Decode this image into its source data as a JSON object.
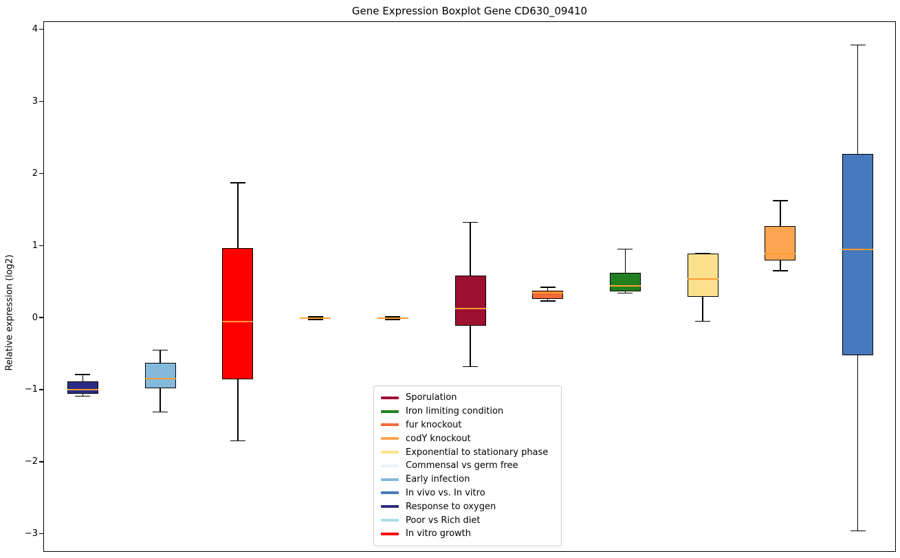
{
  "chart_data": {
    "type": "boxplot",
    "title": "Gene Expression Boxplot Gene CD630_09410",
    "ylabel": "Relative expression (log2)",
    "xlabel": "",
    "ylim": [
      -3.25,
      4.11
    ],
    "xlim": [
      0.5,
      11.5
    ],
    "yticks": [
      4,
      3,
      2,
      1,
      0,
      -1,
      -2,
      -3
    ],
    "xtick_labels": [],
    "grid": false,
    "median_color": "#FF9D2E",
    "legend_position": "lower center inside plot",
    "boxes": [
      {
        "position": 1,
        "condition": "Response to oxygen",
        "color": "#2A2C85",
        "whisker_low": -1.08,
        "q1": -1.05,
        "median": -0.99,
        "q3": -0.88,
        "whisker_high": -0.78
      },
      {
        "position": 2,
        "condition": "Early infection",
        "color": "#85B9DC",
        "whisker_low": -1.3,
        "q1": -0.97,
        "median": -0.84,
        "q3": -0.62,
        "whisker_high": -0.44
      },
      {
        "position": 3,
        "condition": "In vitro growth",
        "color": "#FF0000",
        "whisker_low": -1.7,
        "q1": -0.85,
        "median": -0.05,
        "q3": 0.97,
        "whisker_high": 1.88
      },
      {
        "position": 4,
        "condition": "Commensal vs germ free",
        "color": "#E8F4FB",
        "whisker_low": -0.02,
        "q1": -0.01,
        "median": 0.0,
        "q3": 0.01,
        "whisker_high": 0.02
      },
      {
        "position": 5,
        "condition": "Poor vs Rich diet",
        "color": "#AFDBEA",
        "whisker_low": -0.02,
        "q1": -0.01,
        "median": 0.0,
        "q3": 0.01,
        "whisker_high": 0.02
      },
      {
        "position": 6,
        "condition": "Sporulation",
        "color": "#9E1030",
        "whisker_low": -0.67,
        "q1": -0.1,
        "median": 0.13,
        "q3": 0.59,
        "whisker_high": 1.33
      },
      {
        "position": 7,
        "condition": "fur knockout",
        "color": "#F4693B",
        "whisker_low": 0.24,
        "q1": 0.27,
        "median": 0.35,
        "q3": 0.38,
        "whisker_high": 0.43
      },
      {
        "position": 8,
        "condition": "Iron limiting condition",
        "color": "#208020",
        "whisker_low": 0.35,
        "q1": 0.37,
        "median": 0.45,
        "q3": 0.63,
        "whisker_high": 0.96
      },
      {
        "position": 9,
        "condition": "Exponential to stationary phase",
        "color": "#FBE08E",
        "whisker_low": -0.04,
        "q1": 0.3,
        "median": 0.54,
        "q3": 0.9,
        "whisker_high": 0.9
      },
      {
        "position": 10,
        "condition": "codY knockout",
        "color": "#FBA551",
        "whisker_low": 0.66,
        "q1": 0.8,
        "median": 0.9,
        "q3": 1.28,
        "whisker_high": 1.63
      },
      {
        "position": 11,
        "condition": "In vivo vs. In vitro",
        "color": "#4679BD",
        "whisker_low": -2.95,
        "q1": -0.51,
        "median": 0.95,
        "q3": 2.28,
        "whisker_high": 3.79
      }
    ],
    "legend": [
      {
        "label": "Sporulation",
        "color": "#9E1030"
      },
      {
        "label": "Iron limiting condition",
        "color": "#208020"
      },
      {
        "label": "fur knockout",
        "color": "#F4693B"
      },
      {
        "label": "codY knockout",
        "color": "#FBA551"
      },
      {
        "label": "Exponential to stationary phase",
        "color": "#FBE08E"
      },
      {
        "label": "Commensal vs germ free",
        "color": "#E8F4FB"
      },
      {
        "label": "Early infection",
        "color": "#85B9DC"
      },
      {
        "label": "In vivo vs. In vitro",
        "color": "#4679BD"
      },
      {
        "label": "Response to oxygen",
        "color": "#2A2C85"
      },
      {
        "label": "Poor vs Rich diet",
        "color": "#AFDBEA"
      },
      {
        "label": "In vitro growth",
        "color": "#FF0000"
      }
    ]
  }
}
